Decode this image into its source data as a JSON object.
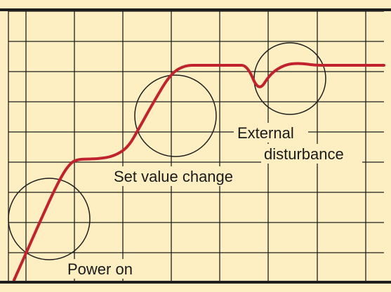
{
  "chart_data": {
    "type": "line",
    "title": "",
    "xlabel": "",
    "ylabel": "",
    "grid": true,
    "legend": "none",
    "colors": {
      "background": "#fdefc1",
      "grid": "#1f1f1f",
      "curve": "#c0232e",
      "circle": "#1f1f1f",
      "frame": "#1f1f1f"
    },
    "series": [
      {
        "values_description_free": true,
        "x": [
          0,
          1.0,
          1.6,
          2.0,
          2.3,
          2.6,
          3.0,
          3.5,
          4.0,
          4.4,
          4.9,
          5.5,
          6.0,
          6.5,
          7.0,
          7.4,
          7.8,
          8.2,
          8.6,
          9.0,
          9.5,
          10.0,
          10.6,
          11.0,
          11.5,
          12.0,
          13.0
        ],
        "values": [
          0.05,
          2.3,
          3.6,
          4.2,
          4.3,
          4.3,
          4.32,
          4.4,
          4.7,
          5.4,
          6.3,
          7.3,
          7.6,
          7.6,
          7.6,
          7.6,
          7.6,
          7.6,
          6.65,
          7.3,
          7.62,
          7.68,
          7.6,
          7.6,
          7.6,
          7.6,
          7.6
        ]
      }
    ],
    "annotations": [
      {
        "text": "Power on"
      },
      {
        "text": "Set value change"
      },
      {
        "text": "External"
      },
      {
        "text": "disturbance"
      }
    ],
    "xlim": [
      0,
      13
    ],
    "ylim": [
      0,
      9.5
    ]
  }
}
